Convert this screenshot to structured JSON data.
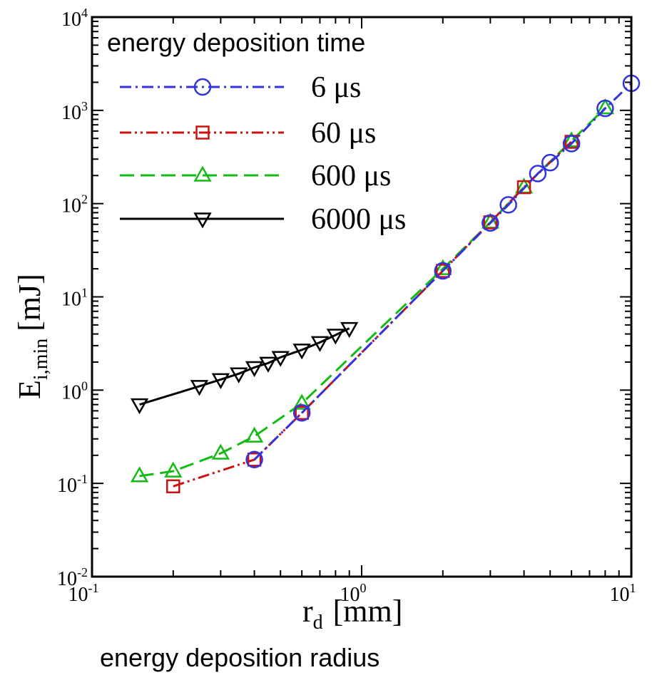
{
  "chart_data": {
    "type": "line",
    "title": "",
    "xlabel_main": "r",
    "xlabel_sub": "d",
    "xlabel_unit": "[mm]",
    "xlabel_caption": "energy deposition radius",
    "ylabel_main": "E",
    "ylabel_sub": "i,min",
    "ylabel_unit": "[mJ]",
    "x_scale": "log",
    "y_scale": "log",
    "xlim": [
      0.1,
      10
    ],
    "ylim": [
      0.01,
      10000
    ],
    "x_ticks": [
      {
        "value": 0.1,
        "base": "10",
        "exp": "-1"
      },
      {
        "value": 1,
        "base": "10",
        "exp": "0"
      },
      {
        "value": 10,
        "base": "10",
        "exp": "1"
      }
    ],
    "y_ticks": [
      {
        "value": 0.01,
        "base": "10",
        "exp": "-2"
      },
      {
        "value": 0.1,
        "base": "10",
        "exp": "-1"
      },
      {
        "value": 1,
        "base": "10",
        "exp": "0"
      },
      {
        "value": 10,
        "base": "10",
        "exp": "1"
      },
      {
        "value": 100,
        "base": "10",
        "exp": "2"
      },
      {
        "value": 1000,
        "base": "10",
        "exp": "3"
      },
      {
        "value": 10000,
        "base": "10",
        "exp": "4"
      }
    ],
    "grid": false,
    "legend": {
      "title": "energy deposition time",
      "placement": "top-left"
    },
    "series": [
      {
        "name": "6 μs",
        "color": "#3333dd",
        "marker": "circle",
        "dash": "dash-dot",
        "x": [
          0.4,
          0.6,
          2,
          3,
          3.5,
          4.5,
          5,
          6,
          8,
          10
        ],
        "y": [
          0.18,
          0.57,
          19,
          62,
          97,
          210,
          275,
          440,
          1050,
          1950
        ]
      },
      {
        "name": "60 μs",
        "color": "#cc1111",
        "marker": "square",
        "dash": "dash-dot-dot",
        "x": [
          0.2,
          0.4,
          0.6,
          2,
          3,
          4,
          6
        ],
        "y": [
          0.093,
          0.18,
          0.57,
          19,
          63,
          150,
          460
        ]
      },
      {
        "name": "600 μs",
        "color": "#11bb11",
        "marker": "triangle-up",
        "dash": "dashed",
        "x": [
          0.15,
          0.2,
          0.3,
          0.4,
          0.6,
          2,
          3,
          4,
          6,
          8
        ],
        "y": [
          0.12,
          0.135,
          0.21,
          0.32,
          0.72,
          20,
          63,
          150,
          470,
          1060
        ]
      },
      {
        "name": "6000 μs",
        "color": "#000000",
        "marker": "triangle-down",
        "dash": "solid",
        "x": [
          0.15,
          0.25,
          0.3,
          0.35,
          0.4,
          0.45,
          0.5,
          0.6,
          0.7,
          0.8,
          0.9
        ],
        "y": [
          0.7,
          1.1,
          1.3,
          1.5,
          1.75,
          1.95,
          2.25,
          2.7,
          3.25,
          3.9,
          4.6
        ]
      }
    ]
  }
}
